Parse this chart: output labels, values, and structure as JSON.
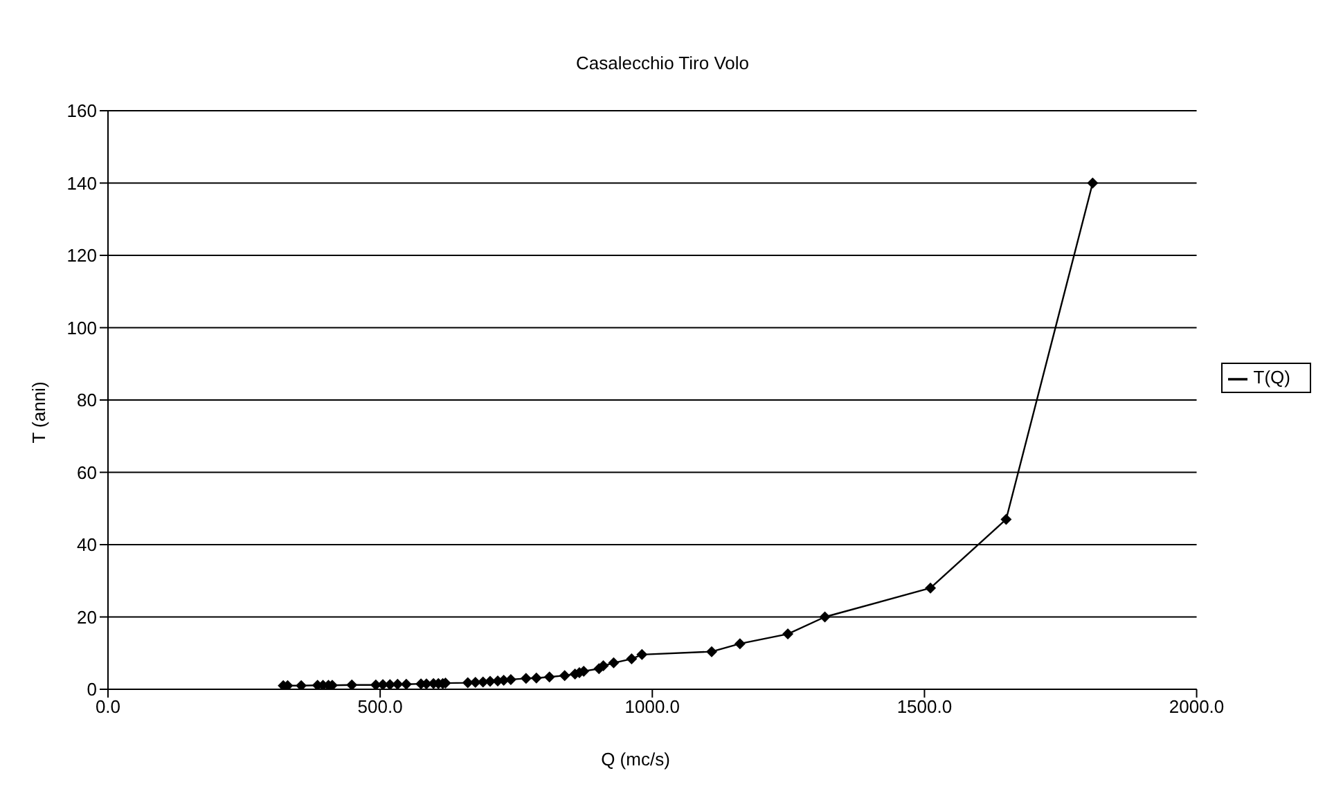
{
  "chart_data": {
    "type": "line",
    "title": "Casalecchio Tiro Volo",
    "xlabel": "Q (mc/s)",
    "ylabel": "T (anni)",
    "x": [
      322,
      330,
      355,
      385,
      395,
      405,
      412,
      448,
      492,
      505,
      518,
      532,
      548,
      575,
      585,
      598,
      607,
      615,
      620,
      661,
      675,
      689,
      702,
      716,
      727,
      740,
      768,
      787,
      811,
      839,
      858,
      866,
      874,
      902,
      910,
      929,
      962,
      981,
      1109,
      1161,
      1249,
      1317,
      1511,
      1650,
      1809
    ],
    "series": [
      {
        "name": "T(Q)",
        "color": "#000000",
        "values": [
          1.0,
          1.0,
          1.0,
          1.1,
          1.1,
          1.1,
          1.1,
          1.2,
          1.2,
          1.3,
          1.3,
          1.4,
          1.4,
          1.5,
          1.5,
          1.6,
          1.6,
          1.6,
          1.7,
          1.8,
          1.9,
          2.0,
          2.2,
          2.3,
          2.5,
          2.7,
          3.0,
          3.1,
          3.4,
          3.8,
          4.2,
          4.6,
          5.0,
          5.7,
          6.5,
          7.3,
          8.4,
          9.6,
          10.4,
          12.6,
          15.3,
          20,
          28,
          47,
          140
        ]
      }
    ],
    "xlim": [
      0,
      2000
    ],
    "xticks": [
      {
        "value": 0,
        "label": "0.0"
      },
      {
        "value": 500,
        "label": "500.0"
      },
      {
        "value": 1000,
        "label": "1000.0"
      },
      {
        "value": 1500,
        "label": "1500.0"
      },
      {
        "value": 2000,
        "label": "2000.0"
      }
    ],
    "ylim": [
      0,
      160
    ],
    "yticks": [
      0,
      20,
      40,
      60,
      80,
      100,
      120,
      140,
      160
    ],
    "grid": "y",
    "legend": "right",
    "marker": "diamond",
    "line_style": "solid"
  }
}
